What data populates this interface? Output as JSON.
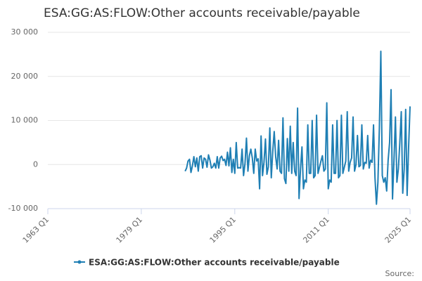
{
  "chart_data": {
    "type": "line",
    "title": "ESA:GG:AS:FLOW:Other accounts receivable/payable",
    "source": "Source:",
    "x": [
      "1986 Q3",
      "1986 Q4",
      "1987 Q1",
      "1987 Q2",
      "1987 Q3",
      "1987 Q4",
      "1988 Q1",
      "1988 Q2",
      "1988 Q3",
      "1988 Q4",
      "1989 Q1",
      "1989 Q2",
      "1989 Q3",
      "1989 Q4",
      "1990 Q1",
      "1990 Q2",
      "1990 Q3",
      "1990 Q4",
      "1991 Q1",
      "1991 Q2",
      "1991 Q3",
      "1991 Q4",
      "1992 Q1",
      "1992 Q2",
      "1992 Q3",
      "1992 Q4",
      "1993 Q1",
      "1993 Q2",
      "1993 Q3",
      "1993 Q4",
      "1994 Q1",
      "1994 Q2",
      "1994 Q3",
      "1994 Q4",
      "1995 Q1",
      "1995 Q2",
      "1995 Q3",
      "1995 Q4",
      "1996 Q1",
      "1996 Q2",
      "1996 Q3",
      "1996 Q4",
      "1997 Q1",
      "1997 Q2",
      "1997 Q3",
      "1997 Q4",
      "1998 Q1",
      "1998 Q2",
      "1998 Q3",
      "1998 Q4",
      "1999 Q1",
      "1999 Q2",
      "1999 Q3",
      "1999 Q4",
      "2000 Q1",
      "2000 Q2",
      "2000 Q3",
      "2000 Q4",
      "2001 Q1",
      "2001 Q2",
      "2001 Q3",
      "2001 Q4",
      "2002 Q1",
      "2002 Q2",
      "2002 Q3",
      "2002 Q4",
      "2003 Q1",
      "2003 Q2",
      "2003 Q3",
      "2003 Q4",
      "2004 Q1",
      "2004 Q2",
      "2004 Q3",
      "2004 Q4",
      "2005 Q1",
      "2005 Q2",
      "2005 Q3",
      "2005 Q4",
      "2006 Q1",
      "2006 Q2",
      "2006 Q3",
      "2006 Q4",
      "2007 Q1",
      "2007 Q2",
      "2007 Q3",
      "2007 Q4",
      "2008 Q1",
      "2008 Q2",
      "2008 Q3",
      "2008 Q4",
      "2009 Q1",
      "2009 Q2",
      "2009 Q3",
      "2009 Q4",
      "2010 Q1",
      "2010 Q2",
      "2010 Q3",
      "2010 Q4",
      "2011 Q1",
      "2011 Q2",
      "2011 Q3",
      "2011 Q4",
      "2012 Q1",
      "2012 Q2",
      "2012 Q3",
      "2012 Q4",
      "2013 Q1",
      "2013 Q2",
      "2013 Q3",
      "2013 Q4",
      "2014 Q1",
      "2014 Q2",
      "2014 Q3",
      "2014 Q4",
      "2015 Q1",
      "2015 Q2",
      "2015 Q3",
      "2015 Q4",
      "2016 Q1",
      "2016 Q2",
      "2016 Q3",
      "2016 Q4",
      "2017 Q1",
      "2017 Q2",
      "2017 Q3",
      "2017 Q4",
      "2018 Q1",
      "2018 Q2",
      "2018 Q3",
      "2018 Q4",
      "2019 Q1",
      "2019 Q2",
      "2019 Q3",
      "2019 Q4",
      "2020 Q1",
      "2020 Q2",
      "2020 Q3",
      "2020 Q4",
      "2021 Q1",
      "2021 Q2",
      "2021 Q3",
      "2021 Q4",
      "2022 Q1",
      "2022 Q2",
      "2022 Q3",
      "2022 Q4",
      "2023 Q1",
      "2023 Q2",
      "2023 Q3",
      "2023 Q4",
      "2024 Q1",
      "2024 Q2",
      "2024 Q3",
      "2024 Q4",
      "2025 Q1"
    ],
    "series": [
      {
        "name": "ESA:GG:AS:FLOW:Other accounts receivable/payable",
        "color": "#1f7fb4",
        "values": [
          -1500,
          -800,
          800,
          1200,
          -1800,
          -300,
          1800,
          -500,
          1500,
          -1500,
          1800,
          2000,
          -800,
          1500,
          1200,
          -600,
          2200,
          1000,
          -800,
          -500,
          300,
          -800,
          1800,
          -800,
          1500,
          1900,
          900,
          1200,
          -200,
          2800,
          -300,
          3800,
          -1800,
          1200,
          -2000,
          5000,
          -800,
          -700,
          -800,
          3500,
          -2500,
          200,
          6000,
          -1500,
          2000,
          3500,
          1500,
          -2000,
          3500,
          800,
          1300,
          -5500,
          6500,
          -2500,
          500,
          5800,
          -2200,
          -500,
          8300,
          -3000,
          3000,
          7500,
          1800,
          -1000,
          5500,
          -1500,
          -2000,
          10600,
          -3200,
          -4300,
          5900,
          -1500,
          8700,
          -2000,
          5000,
          -1500,
          -2500,
          12800,
          -7700,
          -1000,
          4000,
          -5500,
          -3500,
          -4000,
          9000,
          -2000,
          -2000,
          10000,
          -3000,
          -2500,
          11200,
          -2000,
          -600,
          800,
          2000,
          -1500,
          -1000,
          14000,
          -5500,
          -3500,
          -4000,
          9000,
          -2000,
          -2000,
          10000,
          -3000,
          -2500,
          11200,
          -2000,
          -600,
          800,
          12000,
          -1500,
          500,
          1500,
          10800,
          -1500,
          0,
          6600,
          -500,
          -200,
          9000,
          -1000,
          500,
          300,
          6600,
          -800,
          1000,
          500,
          9000,
          -3000,
          -9000,
          -4000,
          8300,
          25700,
          -2500,
          -4000,
          -3000,
          -6000,
          1000,
          5000,
          17000,
          -7800,
          1000,
          10800,
          -4000,
          -1000,
          5000,
          12000,
          -6500,
          -1000,
          12500,
          -7000,
          3700,
          13200
        ]
      }
    ],
    "xlim": [
      "1963 Q1",
      "2025 Q1"
    ],
    "xticks": [
      "1963 Q1",
      "1979 Q1",
      "1995 Q1",
      "2011 Q1",
      "2025 Q1"
    ],
    "ylim": [
      -10000,
      30000
    ],
    "yticks": [
      {
        "value": -10000,
        "label": "-10 000"
      },
      0,
      {
        "value": 10000,
        "label": "10 000"
      },
      {
        "value": 20000,
        "label": "20 000"
      },
      {
        "value": 30000,
        "label": "30 000"
      }
    ],
    "grid": true
  }
}
